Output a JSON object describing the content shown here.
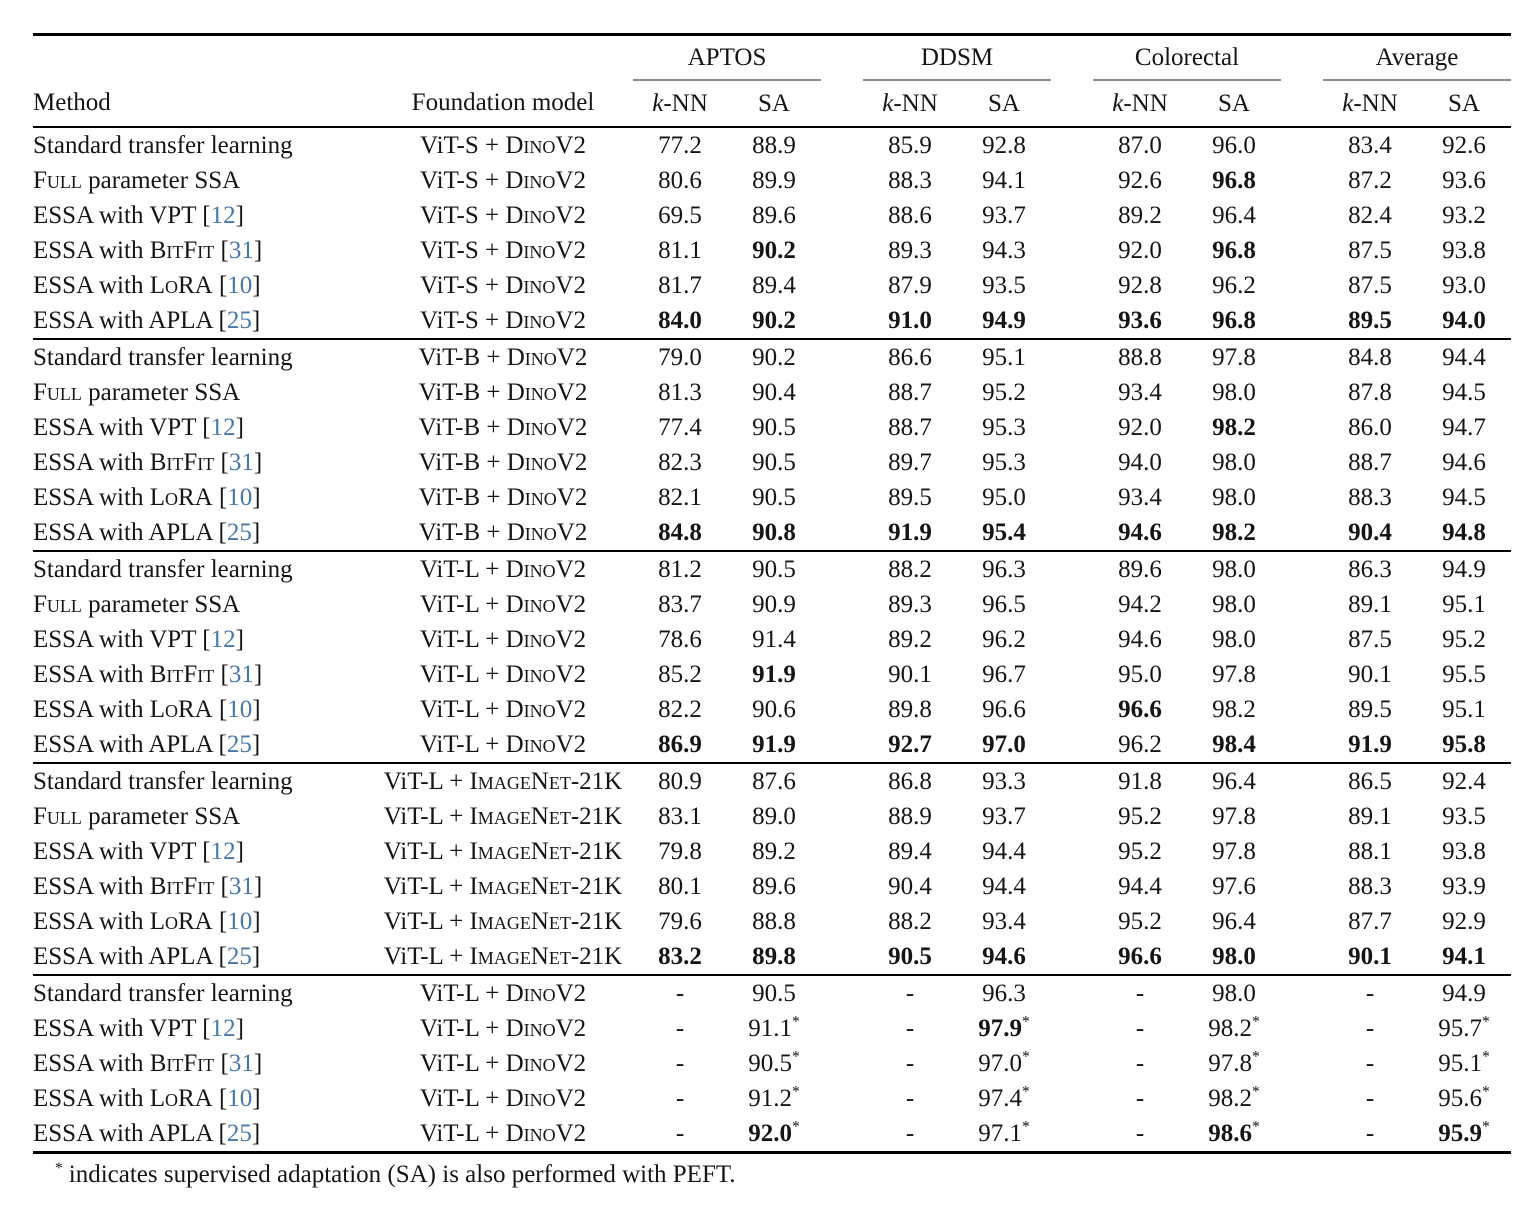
{
  "table": {
    "columns": {
      "method_label": "Method",
      "foundation_label": "Foundation model"
    },
    "groups": [
      "APTOS",
      "DDSM",
      "Colorectal",
      "Average"
    ],
    "subheaders": [
      "$k$-NN",
      "SA"
    ],
    "blocks": [
      {
        "rows": [
          {
            "method": "Standard transfer learning",
            "model": "ViT-S + {DinoV2}",
            "cells": [
              "77.2",
              "88.9",
              "85.9",
              "92.8",
              "87.0",
              "96.0",
              "83.4",
              "92.6"
            ]
          },
          {
            "method": "{Full} parameter SSA",
            "model": "ViT-S + {DinoV2}",
            "cells": [
              "80.6",
              "89.9",
              "88.3",
              "94.1",
              "92.6",
              {
                "v": "96.8",
                "b": 1
              },
              "87.2",
              "93.6"
            ]
          },
          {
            "method": "ESSA with VPT [12]",
            "model": "ViT-S + {DinoV2}",
            "cells": [
              "69.5",
              "89.6",
              "88.6",
              "93.7",
              "89.2",
              "96.4",
              "82.4",
              "93.2"
            ]
          },
          {
            "method": "ESSA with {BitFit} [31]",
            "model": "ViT-S + {DinoV2}",
            "cells": [
              "81.1",
              {
                "v": "90.2",
                "b": 1
              },
              "89.3",
              "94.3",
              "92.0",
              {
                "v": "96.8",
                "b": 1
              },
              "87.5",
              "93.8"
            ]
          },
          {
            "method": "ESSA with {LoRA} [10]",
            "model": "ViT-S + {DinoV2}",
            "cells": [
              "81.7",
              "89.4",
              "87.9",
              "93.5",
              "92.8",
              "96.2",
              "87.5",
              "93.0"
            ]
          },
          {
            "method": "ESSA with APLA [25]",
            "model": "ViT-S + {DinoV2}",
            "cells": [
              {
                "v": "84.0",
                "b": 1
              },
              {
                "v": "90.2",
                "b": 1
              },
              {
                "v": "91.0",
                "b": 1
              },
              {
                "v": "94.9",
                "b": 1
              },
              {
                "v": "93.6",
                "b": 1
              },
              {
                "v": "96.8",
                "b": 1
              },
              {
                "v": "89.5",
                "b": 1
              },
              {
                "v": "94.0",
                "b": 1
              }
            ]
          }
        ]
      },
      {
        "rows": [
          {
            "method": "Standard transfer learning",
            "model": "ViT-B + {DinoV2}",
            "cells": [
              "79.0",
              "90.2",
              "86.6",
              "95.1",
              "88.8",
              "97.8",
              "84.8",
              "94.4"
            ]
          },
          {
            "method": "{Full} parameter SSA",
            "model": "ViT-B + {DinoV2}",
            "cells": [
              "81.3",
              "90.4",
              "88.7",
              "95.2",
              "93.4",
              "98.0",
              "87.8",
              "94.5"
            ]
          },
          {
            "method": "ESSA with VPT [12]",
            "model": "ViT-B + {DinoV2}",
            "cells": [
              "77.4",
              "90.5",
              "88.7",
              "95.3",
              "92.0",
              {
                "v": "98.2",
                "b": 1
              },
              "86.0",
              "94.7"
            ]
          },
          {
            "method": "ESSA with {BitFit} [31]",
            "model": "ViT-B + {DinoV2}",
            "cells": [
              "82.3",
              "90.5",
              "89.7",
              "95.3",
              "94.0",
              "98.0",
              "88.7",
              "94.6"
            ]
          },
          {
            "method": "ESSA with {LoRA} [10]",
            "model": "ViT-B + {DinoV2}",
            "cells": [
              "82.1",
              "90.5",
              "89.5",
              "95.0",
              "93.4",
              "98.0",
              "88.3",
              "94.5"
            ]
          },
          {
            "method": "ESSA with APLA [25]",
            "model": "ViT-B + {DinoV2}",
            "cells": [
              {
                "v": "84.8",
                "b": 1
              },
              {
                "v": "90.8",
                "b": 1
              },
              {
                "v": "91.9",
                "b": 1
              },
              {
                "v": "95.4",
                "b": 1
              },
              {
                "v": "94.6",
                "b": 1
              },
              {
                "v": "98.2",
                "b": 1
              },
              {
                "v": "90.4",
                "b": 1
              },
              {
                "v": "94.8",
                "b": 1
              }
            ]
          }
        ]
      },
      {
        "rows": [
          {
            "method": "Standard transfer learning",
            "model": "ViT-L + {DinoV2}",
            "cells": [
              "81.2",
              "90.5",
              "88.2",
              "96.3",
              "89.6",
              "98.0",
              "86.3",
              "94.9"
            ]
          },
          {
            "method": "{Full} parameter SSA",
            "model": "ViT-L + {DinoV2}",
            "cells": [
              "83.7",
              "90.9",
              "89.3",
              "96.5",
              "94.2",
              "98.0",
              "89.1",
              "95.1"
            ]
          },
          {
            "method": "ESSA with VPT [12]",
            "model": "ViT-L + {DinoV2}",
            "cells": [
              "78.6",
              "91.4",
              "89.2",
              "96.2",
              "94.6",
              "98.0",
              "87.5",
              "95.2"
            ]
          },
          {
            "method": "ESSA with {BitFit} [31]",
            "model": "ViT-L + {DinoV2}",
            "cells": [
              "85.2",
              {
                "v": "91.9",
                "b": 1
              },
              "90.1",
              "96.7",
              "95.0",
              "97.8",
              "90.1",
              "95.5"
            ]
          },
          {
            "method": "ESSA with {LoRA} [10]",
            "model": "ViT-L + {DinoV2}",
            "cells": [
              "82.2",
              "90.6",
              "89.8",
              "96.6",
              {
                "v": "96.6",
                "b": 1
              },
              "98.2",
              "89.5",
              "95.1"
            ]
          },
          {
            "method": "ESSA with APLA [25]",
            "model": "ViT-L + {DinoV2}",
            "cells": [
              {
                "v": "86.9",
                "b": 1
              },
              {
                "v": "91.9",
                "b": 1
              },
              {
                "v": "92.7",
                "b": 1
              },
              {
                "v": "97.0",
                "b": 1
              },
              "96.2",
              {
                "v": "98.4",
                "b": 1
              },
              {
                "v": "91.9",
                "b": 1
              },
              {
                "v": "95.8",
                "b": 1
              }
            ]
          }
        ]
      },
      {
        "rows": [
          {
            "method": "Standard transfer learning",
            "model": "ViT-L + {ImageNet}-21K",
            "cells": [
              "80.9",
              "87.6",
              "86.8",
              "93.3",
              "91.8",
              "96.4",
              "86.5",
              "92.4"
            ]
          },
          {
            "method": "{Full} parameter SSA",
            "model": "ViT-L + {ImageNet}-21K",
            "cells": [
              "83.1",
              "89.0",
              "88.9",
              "93.7",
              "95.2",
              "97.8",
              "89.1",
              "93.5"
            ]
          },
          {
            "method": "ESSA with VPT [12]",
            "model": "ViT-L + {ImageNet}-21K",
            "cells": [
              "79.8",
              "89.2",
              "89.4",
              "94.4",
              "95.2",
              "97.8",
              "88.1",
              "93.8"
            ]
          },
          {
            "method": "ESSA with {BitFit} [31]",
            "model": "ViT-L + {ImageNet}-21K",
            "cells": [
              "80.1",
              "89.6",
              "90.4",
              "94.4",
              "94.4",
              "97.6",
              "88.3",
              "93.9"
            ]
          },
          {
            "method": "ESSA with {LoRA} [10]",
            "model": "ViT-L + {ImageNet}-21K",
            "cells": [
              "79.6",
              "88.8",
              "88.2",
              "93.4",
              "95.2",
              "96.4",
              "87.7",
              "92.9"
            ]
          },
          {
            "method": "ESSA with APLA [25]",
            "model": "ViT-L + {ImageNet}-21K",
            "cells": [
              {
                "v": "83.2",
                "b": 1
              },
              {
                "v": "89.8",
                "b": 1
              },
              {
                "v": "90.5",
                "b": 1
              },
              {
                "v": "94.6",
                "b": 1
              },
              {
                "v": "96.6",
                "b": 1
              },
              {
                "v": "98.0",
                "b": 1
              },
              {
                "v": "90.1",
                "b": 1
              },
              {
                "v": "94.1",
                "b": 1
              }
            ]
          }
        ]
      },
      {
        "rows": [
          {
            "method": "Standard transfer learning",
            "model": "ViT-L + {DinoV2}",
            "cells": [
              "-",
              "90.5",
              "-",
              "96.3",
              "-",
              "98.0",
              "-",
              "94.9"
            ]
          },
          {
            "method": "ESSA with VPT [12]",
            "model": "ViT-L + {DinoV2}",
            "cells": [
              "-",
              {
                "v": "91.1",
                "s": 1
              },
              "-",
              {
                "v": "97.9",
                "b": 1,
                "s": 1
              },
              "-",
              {
                "v": "98.2",
                "s": 1
              },
              "-",
              {
                "v": "95.7",
                "s": 1
              }
            ]
          },
          {
            "method": "ESSA with {BitFit} [31]",
            "model": "ViT-L + {DinoV2}",
            "cells": [
              "-",
              {
                "v": "90.5",
                "s": 1
              },
              "-",
              {
                "v": "97.0",
                "s": 1
              },
              "-",
              {
                "v": "97.8",
                "s": 1
              },
              "-",
              {
                "v": "95.1",
                "s": 1
              }
            ]
          },
          {
            "method": "ESSA with {LoRA} [10]",
            "model": "ViT-L + {DinoV2}",
            "cells": [
              "-",
              {
                "v": "91.2",
                "s": 1
              },
              "-",
              {
                "v": "97.4",
                "s": 1
              },
              "-",
              {
                "v": "98.2",
                "s": 1
              },
              "-",
              {
                "v": "95.6",
                "s": 1
              }
            ]
          },
          {
            "method": "ESSA with APLA [25]",
            "model": "ViT-L + {DinoV2}",
            "cells": [
              "-",
              {
                "v": "92.0",
                "b": 1,
                "s": 1
              },
              "-",
              {
                "v": "97.1",
                "s": 1
              },
              "-",
              {
                "v": "98.6",
                "b": 1,
                "s": 1
              },
              "-",
              {
                "v": "95.9",
                "b": 1,
                "s": 1
              }
            ]
          }
        ]
      }
    ]
  },
  "footnote": {
    "marker": "*",
    "text": "indicates supervised adaptation (SA) is also performed with PEFT."
  },
  "colors": {
    "citation": "#4878a8",
    "cmidrule": "#8c8c8c",
    "rule": "#000000",
    "text": "#151515",
    "background": "#ffffff"
  }
}
